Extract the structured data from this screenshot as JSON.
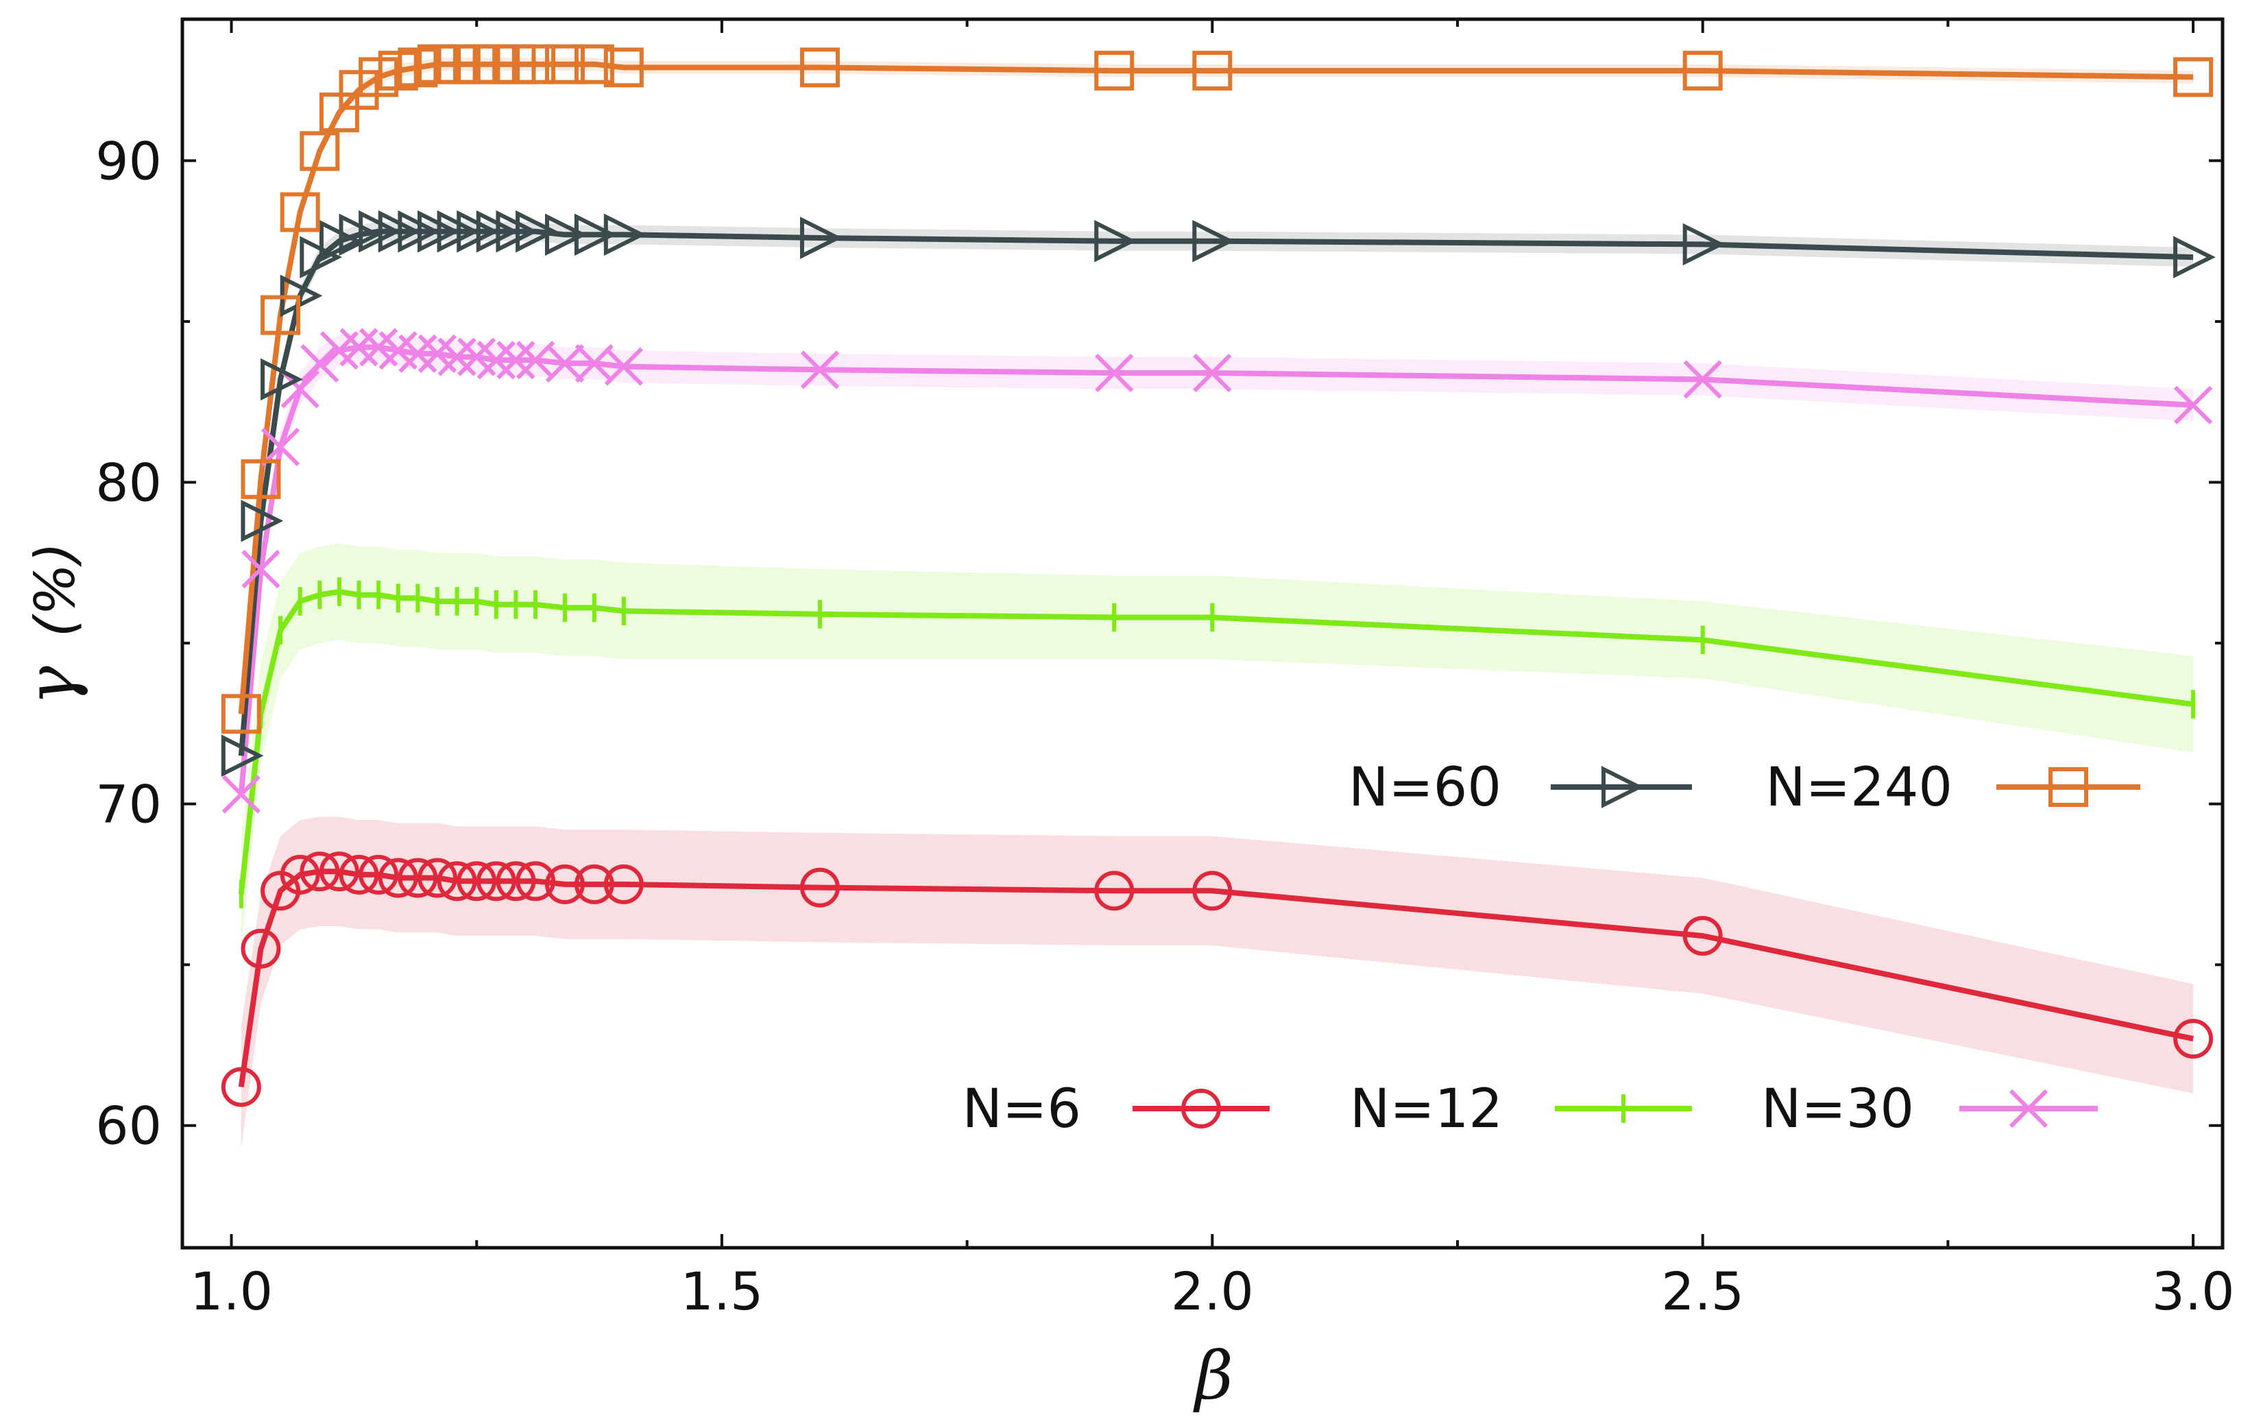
{
  "chart_data": {
    "type": "line",
    "xlabel": "β",
    "ylabel": "γ",
    "ylabel_unit": "(%)",
    "xlim": [
      0.95,
      3.03
    ],
    "ylim": [
      56.2,
      94.4
    ],
    "xticks_major": [
      1.0,
      1.5,
      2.0,
      2.5,
      3.0
    ],
    "xtick_labels": [
      "1.0",
      "1.5",
      "2.0",
      "2.5",
      "3.0"
    ],
    "xticks_minor": [
      1.25,
      1.75,
      2.25,
      2.75
    ],
    "yticks_major": [
      60,
      70,
      80,
      90
    ],
    "ytick_labels": [
      "60",
      "70",
      "80",
      "90"
    ],
    "yticks_minor": [
      65,
      75,
      85
    ],
    "x": [
      1.01,
      1.03,
      1.05,
      1.07,
      1.09,
      1.11,
      1.13,
      1.15,
      1.17,
      1.19,
      1.21,
      1.23,
      1.25,
      1.27,
      1.29,
      1.31,
      1.34,
      1.37,
      1.4,
      1.6,
      1.9,
      2.0,
      2.5,
      3.0
    ],
    "series": [
      {
        "name": "N=6",
        "color": "#e0283c",
        "marker": "circle",
        "values": [
          61.2,
          65.5,
          67.3,
          67.8,
          67.9,
          67.9,
          67.8,
          67.8,
          67.7,
          67.7,
          67.7,
          67.6,
          67.6,
          67.6,
          67.6,
          67.6,
          67.5,
          67.5,
          67.5,
          67.4,
          67.3,
          67.3,
          65.9,
          62.7
        ],
        "band": [
          1.9,
          1.7,
          1.7,
          1.7,
          1.7,
          1.7,
          1.7,
          1.7,
          1.7,
          1.7,
          1.7,
          1.7,
          1.7,
          1.7,
          1.7,
          1.7,
          1.7,
          1.7,
          1.7,
          1.7,
          1.7,
          1.7,
          1.8,
          1.7
        ]
      },
      {
        "name": "N=12",
        "color": "#7fe817",
        "marker": "tick",
        "values": [
          67.2,
          72.8,
          75.4,
          76.3,
          76.5,
          76.6,
          76.5,
          76.5,
          76.4,
          76.4,
          76.3,
          76.3,
          76.3,
          76.2,
          76.2,
          76.2,
          76.1,
          76.1,
          76.0,
          75.9,
          75.8,
          75.8,
          75.1,
          73.1
        ],
        "band": [
          1.8,
          1.6,
          1.5,
          1.5,
          1.5,
          1.5,
          1.5,
          1.5,
          1.5,
          1.5,
          1.5,
          1.5,
          1.5,
          1.5,
          1.5,
          1.5,
          1.5,
          1.5,
          1.5,
          1.4,
          1.3,
          1.3,
          1.2,
          1.5
        ]
      },
      {
        "name": "N=30",
        "color": "#ee82e6",
        "marker": "x",
        "values": [
          70.3,
          77.3,
          81.1,
          82.9,
          83.7,
          84.1,
          84.2,
          84.2,
          84.1,
          84.0,
          84.0,
          83.9,
          83.9,
          83.8,
          83.8,
          83.8,
          83.7,
          83.7,
          83.6,
          83.5,
          83.4,
          83.4,
          83.2,
          82.4
        ],
        "band": [
          0.6,
          0.5,
          0.5,
          0.5,
          0.5,
          0.5,
          0.5,
          0.5,
          0.5,
          0.5,
          0.5,
          0.5,
          0.5,
          0.5,
          0.5,
          0.5,
          0.5,
          0.5,
          0.5,
          0.5,
          0.5,
          0.5,
          0.5,
          0.5
        ]
      },
      {
        "name": "N=60",
        "color": "#3b4a4d",
        "marker": "triangle-right",
        "values": [
          71.5,
          78.8,
          83.2,
          85.8,
          87.0,
          87.5,
          87.7,
          87.8,
          87.8,
          87.8,
          87.8,
          87.8,
          87.8,
          87.8,
          87.8,
          87.8,
          87.7,
          87.7,
          87.7,
          87.6,
          87.5,
          87.5,
          87.4,
          87.0
        ],
        "band": [
          0.3,
          0.3,
          0.3,
          0.3,
          0.3,
          0.3,
          0.3,
          0.3,
          0.3,
          0.3,
          0.3,
          0.3,
          0.3,
          0.3,
          0.3,
          0.3,
          0.3,
          0.3,
          0.3,
          0.3,
          0.3,
          0.3,
          0.3,
          0.3
        ]
      },
      {
        "name": "N=240",
        "color": "#e0772d",
        "marker": "square",
        "values": [
          72.8,
          80.1,
          85.2,
          88.4,
          90.3,
          91.5,
          92.2,
          92.6,
          92.8,
          92.9,
          93.0,
          93.0,
          93.0,
          93.0,
          93.0,
          93.0,
          93.0,
          93.0,
          92.9,
          92.9,
          92.8,
          92.8,
          92.8,
          92.6
        ],
        "band": [
          0.2,
          0.2,
          0.2,
          0.2,
          0.2,
          0.2,
          0.2,
          0.2,
          0.2,
          0.2,
          0.2,
          0.2,
          0.2,
          0.2,
          0.2,
          0.2,
          0.2,
          0.2,
          0.2,
          0.2,
          0.2,
          0.2,
          0.2,
          0.2
        ]
      }
    ],
    "legend_upper": [
      "N=60",
      "N=240"
    ],
    "legend_lower": [
      "N=6",
      "N=12",
      "N=30"
    ],
    "legend_placement": "lower-right"
  }
}
